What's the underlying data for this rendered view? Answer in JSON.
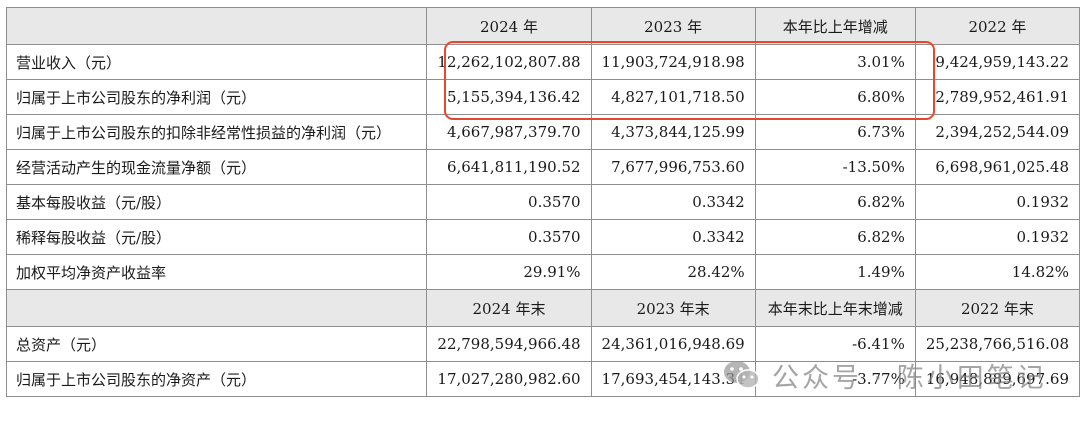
{
  "header1": [
    "",
    "2024 年",
    "2023 年",
    "本年比上年增减",
    "2022 年"
  ],
  "rows1": [
    {
      "label": "营业收入（元）",
      "v2024": "12,262,102,807.88",
      "v2023": "11,903,724,918.98",
      "change": "3.01%",
      "v2022": "9,424,959,143.22"
    },
    {
      "label": "归属于上市公司股东的净利润（元）",
      "v2024": "5,155,394,136.42",
      "v2023": "4,827,101,718.50",
      "change": "6.80%",
      "v2022": "2,789,952,461.91"
    },
    {
      "label": "归属于上市公司股东的扣除非经常性损益的净利润（元）",
      "v2024": "4,667,987,379.70",
      "v2023": "4,373,844,125.99",
      "change": "6.73%",
      "v2022": "2,394,252,544.09"
    },
    {
      "label": "经营活动产生的现金流量净额（元）",
      "v2024": "6,641,811,190.52",
      "v2023": "7,677,996,753.60",
      "change": "-13.50%",
      "v2022": "6,698,961,025.48"
    },
    {
      "label": "基本每股收益（元/股）",
      "v2024": "0.3570",
      "v2023": "0.3342",
      "change": "6.82%",
      "v2022": "0.1932"
    },
    {
      "label": "稀释每股收益（元/股）",
      "v2024": "0.3570",
      "v2023": "0.3342",
      "change": "6.82%",
      "v2022": "0.1932"
    },
    {
      "label": "加权平均净资产收益率",
      "v2024": "29.91%",
      "v2023": "28.42%",
      "change": "1.49%",
      "v2022": "14.82%"
    }
  ],
  "header2": [
    "",
    "2024 年末",
    "2023 年末",
    "本年末比上年末增减",
    "2022 年末"
  ],
  "rows2": [
    {
      "label": "总资产（元）",
      "v2024": "22,798,594,966.48",
      "v2023": "24,361,016,948.69",
      "change": "-6.41%",
      "v2022": "25,238,766,516.08"
    },
    {
      "label": "归属于上市公司股东的净资产（元）",
      "v2024": "17,027,280,982.60",
      "v2023": "17,693,454,143.34",
      "change": "-3.77%",
      "v2022": "16,948,889,697.69"
    }
  ],
  "watermark": {
    "text": "公众号 · 陈小田笔记",
    "icon": "wechat-icon"
  },
  "colors": {
    "header_bg": "#e8e8e8",
    "border": "#8f8f8f",
    "highlight": "#e8472f"
  }
}
